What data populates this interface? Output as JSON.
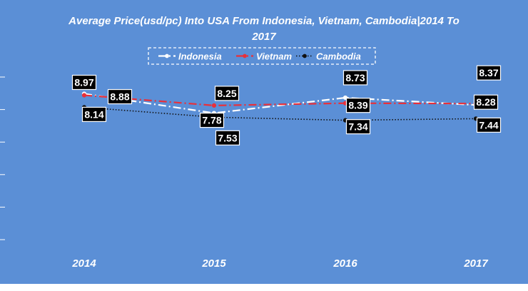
{
  "chart_data": {
    "type": "line",
    "title_line1": "Average Price(usd/pc) Into USA From Indonesia, Vietnam, Cambodia|2014 To",
    "title_line2": "2017",
    "categories": [
      "2014",
      "2015",
      "2016",
      "2017"
    ],
    "series": [
      {
        "name": "Indonesia",
        "values": [
          8.97,
          7.78,
          8.73,
          8.28
        ],
        "color": "#ffffff",
        "dash": "dashdot"
      },
      {
        "name": "Vietnam",
        "values": [
          8.88,
          8.25,
          8.39,
          8.37
        ],
        "color": "#e8303a",
        "dash": "dashdot"
      },
      {
        "name": "Cambodia",
        "values": [
          8.14,
          7.53,
          7.34,
          7.44
        ],
        "color": "#111111",
        "dash": "dotted"
      }
    ],
    "ylim": [
      0,
      10
    ],
    "legend_position": "top",
    "background": "#5b8fd6",
    "label_box_color": "#000000",
    "label_text_color": "#ffffff"
  }
}
